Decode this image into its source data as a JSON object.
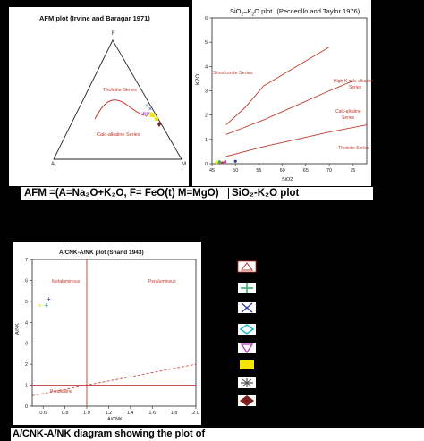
{
  "afm": {
    "title": "AFM plot (Irvine and Baragar 1971)",
    "vertex_f": "F",
    "vertex_a": "A",
    "vertex_m": "M",
    "tholeiite_label": "Tholeiite Series",
    "calc_alkaline_label": "Calc-alkaline Series"
  },
  "sio2_k2o": {
    "title_prefix": "SiO",
    "title_sub": "2",
    "title_mid": "–K",
    "title_sub2": "2",
    "title_suffix": "O plot",
    "title_ref": "(Peccerillo and Taylor 1976)",
    "ylabel": "K2O",
    "xlabel": "SiO2",
    "series_labels": {
      "shoshonite": "Shoshonite Series",
      "high_k_1": "High-K calc-alkaline",
      "high_k_2": "Series",
      "calc_alk_1": "Calc-alkaline",
      "calc_alk_2": "Series",
      "tholeiite": "Tholeiite Series"
    }
  },
  "caption_top": {
    "left": "AFM =(A=Na₂O+K₂O, F= FeO(t) M=MgO)",
    "right": "SiO₂-K₂O plot"
  },
  "acnk": {
    "title": "A/CNK-A/NK plot (Shand 1943)",
    "xlabel": "A/CNK",
    "ylabel": "A/NK",
    "metaluminous": "Metaluminous",
    "peraluminous": "Peraluminous",
    "peralkaline": "Peralkaline"
  },
  "caption_bottom": "A/CNK-A/NK diagram showing the plot of",
  "colors": {
    "line_red": "#c0392b",
    "green": "#27ae60",
    "blue": "#2c3e9e",
    "cyan": "#1fb5c9",
    "magenta": "#b03ab8",
    "yellow": "#f2e600",
    "gray": "#555555",
    "darkred": "#7b1d1d"
  },
  "legend_symbols": [
    "triangle-red",
    "cross-green",
    "x-blue",
    "diamond-cyan",
    "triangle-magenta",
    "square-yellow",
    "star-gray",
    "diamond-darkred"
  ],
  "chart_data": [
    {
      "type": "scatter",
      "title": "AFM plot (Irvine and Baragar 1971)",
      "ternary": true,
      "vertices": [
        "F",
        "A",
        "M"
      ],
      "regions": [
        "Tholeiite Series",
        "Calc-alkaline Series"
      ]
    },
    {
      "type": "line",
      "title": "SiO2–K2O plot (Peccerillo and Taylor 1976)",
      "xlabel": "SiO2",
      "ylabel": "K2O",
      "xlim": [
        45,
        78
      ],
      "ylim": [
        0,
        6
      ],
      "x_ticks": [
        45,
        50,
        55,
        60,
        65,
        70,
        75
      ],
      "y_ticks": [
        0,
        1,
        2,
        3,
        4,
        5,
        6
      ],
      "series": [
        {
          "name": "Shoshonite / High-K boundary",
          "x": [
            48,
            52,
            56,
            63,
            70
          ],
          "y": [
            1.6,
            2.3,
            3.2,
            4.0,
            4.8
          ]
        },
        {
          "name": "High-K / Calc-alkaline boundary",
          "x": [
            48,
            52,
            56,
            63,
            70,
            75
          ],
          "y": [
            1.2,
            1.5,
            1.8,
            2.4,
            3.0,
            3.4
          ]
        },
        {
          "name": "Calc-alkaline / Tholeiite boundary",
          "x": [
            48,
            52,
            56,
            63,
            70,
            78
          ],
          "y": [
            0.3,
            0.5,
            0.7,
            1.0,
            1.3,
            1.6
          ]
        }
      ],
      "points": [
        {
          "x": 46.0,
          "y": 0.05,
          "color": "#f2e600"
        },
        {
          "x": 46.6,
          "y": 0.08,
          "color": "#27ae60"
        },
        {
          "x": 47.2,
          "y": 0.04,
          "color": "#c0392b"
        },
        {
          "x": 47.8,
          "y": 0.08,
          "color": "#b03ab8"
        },
        {
          "x": 50.0,
          "y": 0.1,
          "color": "#2c3e9e"
        }
      ]
    },
    {
      "type": "scatter",
      "title": "A/CNK-A/NK plot (Shand 1943)",
      "xlabel": "A/CNK",
      "ylabel": "A/NK",
      "xlim": [
        0.5,
        2.0
      ],
      "ylim": [
        0,
        7
      ],
      "x_ticks": [
        0.6,
        0.8,
        1.0,
        1.2,
        1.4,
        1.6,
        1.8,
        2.0
      ],
      "y_ticks": [
        0,
        1,
        2,
        3,
        4,
        5,
        6,
        7
      ],
      "points": [
        {
          "x": 0.57,
          "y": 4.8,
          "color": "#f2e600"
        },
        {
          "x": 0.63,
          "y": 4.8,
          "color": "#27ae60"
        },
        {
          "x": 0.65,
          "y": 5.1,
          "color": "#2c3e9e"
        }
      ]
    }
  ]
}
